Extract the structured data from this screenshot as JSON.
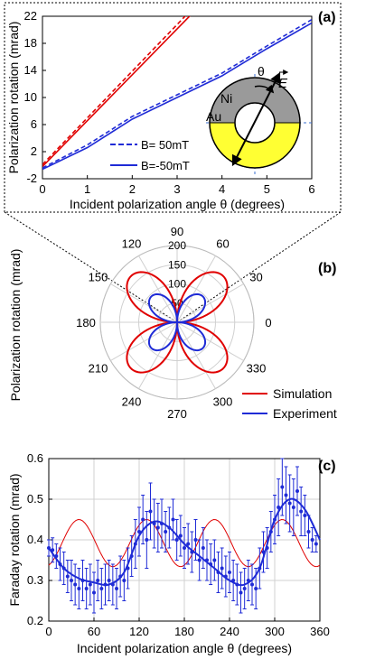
{
  "panel_labels": {
    "a": "(a)",
    "b": "(b)",
    "c": "(c)"
  },
  "colors": {
    "red": "#e00000",
    "blue": "#1f2bd6",
    "gold": "#ffff33",
    "gray": "#9a9a9a",
    "grid": "#d0d0d0"
  },
  "chart_data": [
    {
      "panel": "a",
      "type": "line",
      "xlabel": "Incident polarization angle θ (degrees)",
      "ylabel": "Polarization rotation (mrad)",
      "xlim": [
        0,
        6
      ],
      "ylim": [
        -2,
        22
      ],
      "xticks": [
        "0",
        "1",
        "2",
        "3",
        "4",
        "5",
        "6"
      ],
      "yticks": [
        "-2",
        "2",
        "6",
        "10",
        "14",
        "18",
        "22"
      ],
      "series": [
        {
          "name": "",
          "color": "#e00000",
          "dash": "solid",
          "x": [
            0,
            3.35
          ],
          "y": [
            -0.2,
            22.5
          ]
        },
        {
          "name": "",
          "color": "#e00000",
          "dash": "dashed",
          "x": [
            0,
            3.25
          ],
          "y": [
            0.1,
            22.5
          ]
        },
        {
          "name": "B= 50mT",
          "color": "#1f2bd6",
          "dash": "dashed",
          "x": [
            0,
            1,
            2,
            3,
            4,
            5,
            6
          ],
          "y": [
            -0.4,
            3.0,
            7.2,
            10.4,
            13.6,
            17.6,
            21.5
          ]
        },
        {
          "name": "B=-50mT",
          "color": "#1f2bd6",
          "dash": "solid",
          "x": [
            0,
            1,
            2,
            3,
            4,
            5,
            6
          ],
          "y": [
            -0.6,
            2.6,
            6.8,
            10.0,
            13.2,
            17.2,
            21.0
          ]
        }
      ],
      "legend": "lower-center",
      "inset": {
        "labels": [
          "Ni",
          "Au"
        ],
        "angle_label": "θ",
        "field_label": "E"
      }
    },
    {
      "panel": "b",
      "type": "polar",
      "ylabel": "Polarization rotation (mrad)",
      "angle_ticks": [
        "0",
        "30",
        "60",
        "90",
        "120",
        "150",
        "180",
        "210",
        "240",
        "270",
        "300",
        "330"
      ],
      "radial_ticks": [
        "50",
        "100",
        "150",
        "200"
      ],
      "rmax": 200,
      "series": [
        {
          "name": "Simulation",
          "color": "#e00000",
          "amplitude": 170
        },
        {
          "name": "Experiment",
          "color": "#1f2bd6",
          "amplitude": 95
        }
      ],
      "legend": "lower-right"
    },
    {
      "panel": "c",
      "type": "scatter",
      "xlabel": "Incident polarization angle θ (degrees)",
      "ylabel": "Faraday rotation (mrad)",
      "xlim": [
        0,
        360
      ],
      "ylim": [
        0.2,
        0.6
      ],
      "xticks": [
        "0",
        "60",
        "120",
        "180",
        "240",
        "300",
        "360"
      ],
      "yticks": [
        "0.2",
        "0.3",
        "0.4",
        "0.5",
        "0.6"
      ],
      "series": [
        {
          "name": "",
          "type": "line",
          "color": "#e00000",
          "mean": 0.392,
          "amplitude": 0.058,
          "phase": 40
        },
        {
          "name": "",
          "type": "fit",
          "color": "#1f2bd6",
          "x": [
            0,
            20,
            40,
            60,
            80,
            100,
            120,
            140,
            160,
            180,
            200,
            220,
            240,
            260,
            280,
            300,
            320,
            340,
            360
          ],
          "y": [
            0.38,
            0.33,
            0.305,
            0.295,
            0.29,
            0.32,
            0.41,
            0.445,
            0.43,
            0.39,
            0.36,
            0.33,
            0.3,
            0.29,
            0.33,
            0.45,
            0.5,
            0.475,
            0.4
          ]
        },
        {
          "name": "",
          "type": "scatter",
          "color": "#1f2bd6",
          "x": [
            0,
            5,
            10,
            15,
            20,
            25,
            30,
            35,
            40,
            45,
            50,
            55,
            60,
            65,
            70,
            75,
            80,
            85,
            90,
            95,
            100,
            105,
            110,
            115,
            120,
            125,
            130,
            135,
            140,
            145,
            150,
            155,
            160,
            165,
            170,
            175,
            180,
            185,
            190,
            195,
            200,
            205,
            210,
            215,
            220,
            225,
            230,
            235,
            240,
            245,
            250,
            255,
            260,
            265,
            270,
            275,
            280,
            285,
            290,
            295,
            300,
            305,
            310,
            315,
            320,
            325,
            330,
            335,
            340,
            345,
            350,
            355
          ],
          "y": [
            0.38,
            0.375,
            0.36,
            0.34,
            0.33,
            0.31,
            0.3,
            0.29,
            0.28,
            0.3,
            0.28,
            0.29,
            0.27,
            0.3,
            0.28,
            0.29,
            0.3,
            0.29,
            0.28,
            0.31,
            0.3,
            0.33,
            0.36,
            0.39,
            0.42,
            0.45,
            0.4,
            0.47,
            0.44,
            0.43,
            0.44,
            0.42,
            0.43,
            0.45,
            0.4,
            0.41,
            0.38,
            0.39,
            0.37,
            0.4,
            0.35,
            0.38,
            0.35,
            0.34,
            0.35,
            0.32,
            0.33,
            0.31,
            0.32,
            0.3,
            0.29,
            0.27,
            0.28,
            0.3,
            0.29,
            0.28,
            0.33,
            0.37,
            0.38,
            0.42,
            0.45,
            0.48,
            0.53,
            0.51,
            0.49,
            0.48,
            0.52,
            0.47,
            0.46,
            0.42,
            0.4,
            0.39
          ],
          "err": [
            0.02,
            0.03,
            0.03,
            0.04,
            0.04,
            0.04,
            0.05,
            0.05,
            0.05,
            0.05,
            0.05,
            0.05,
            0.05,
            0.05,
            0.05,
            0.05,
            0.05,
            0.05,
            0.05,
            0.05,
            0.05,
            0.05,
            0.05,
            0.06,
            0.06,
            0.06,
            0.07,
            0.07,
            0.06,
            0.06,
            0.06,
            0.05,
            0.05,
            0.05,
            0.05,
            0.05,
            0.05,
            0.05,
            0.05,
            0.05,
            0.05,
            0.05,
            0.05,
            0.05,
            0.05,
            0.05,
            0.05,
            0.05,
            0.05,
            0.05,
            0.05,
            0.05,
            0.05,
            0.05,
            0.05,
            0.05,
            0.05,
            0.05,
            0.05,
            0.05,
            0.06,
            0.07,
            0.07,
            0.07,
            0.07,
            0.07,
            0.06,
            0.06,
            0.05,
            0.04,
            0.03,
            0.02
          ]
        }
      ]
    }
  ]
}
